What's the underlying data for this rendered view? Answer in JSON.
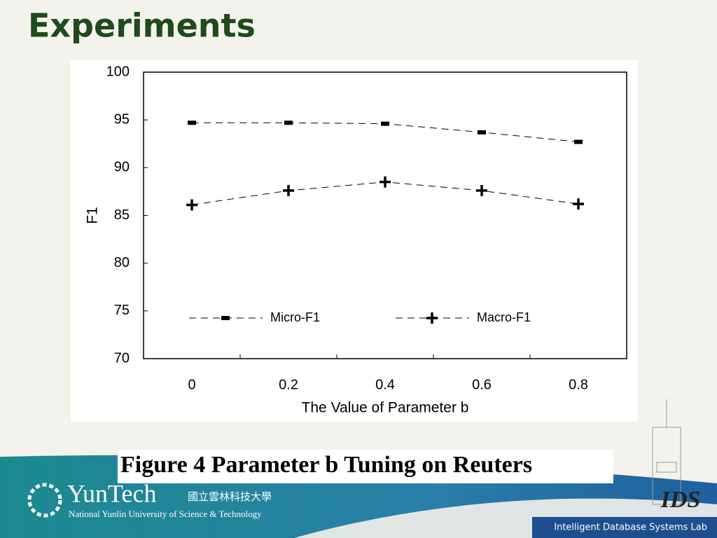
{
  "slide": {
    "title": "Experiments",
    "caption": "Figure 4 Parameter b Tuning on Reuters",
    "logo_name": "YunTech",
    "logo_chinese": "國立雲林科技大學",
    "logo_subtitle": "National Yunlin University of Science & Technology",
    "lab_logo": "IDS",
    "lab": "Intelligent Database Systems Lab"
  },
  "chart_data": {
    "type": "line",
    "x_label": "The Value of Parameter b",
    "y_label": "F1",
    "categories": [
      "0",
      "0.2",
      "0.4",
      "0.6",
      "0.8"
    ],
    "series": [
      {
        "name": "Micro-F1",
        "color": "#000000",
        "marker": "square",
        "values": [
          94.7,
          94.7,
          94.6,
          93.7,
          92.7
        ]
      },
      {
        "name": "Macro-F1",
        "color": "#000000",
        "marker": "plus",
        "values": [
          86.1,
          87.6,
          88.5,
          87.6,
          86.2
        ]
      }
    ],
    "ylim": [
      70,
      100
    ],
    "yticks": [
      70,
      75,
      80,
      85,
      90,
      95,
      100
    ],
    "grid": false,
    "line_style": "dashed",
    "legend": "lower center"
  }
}
